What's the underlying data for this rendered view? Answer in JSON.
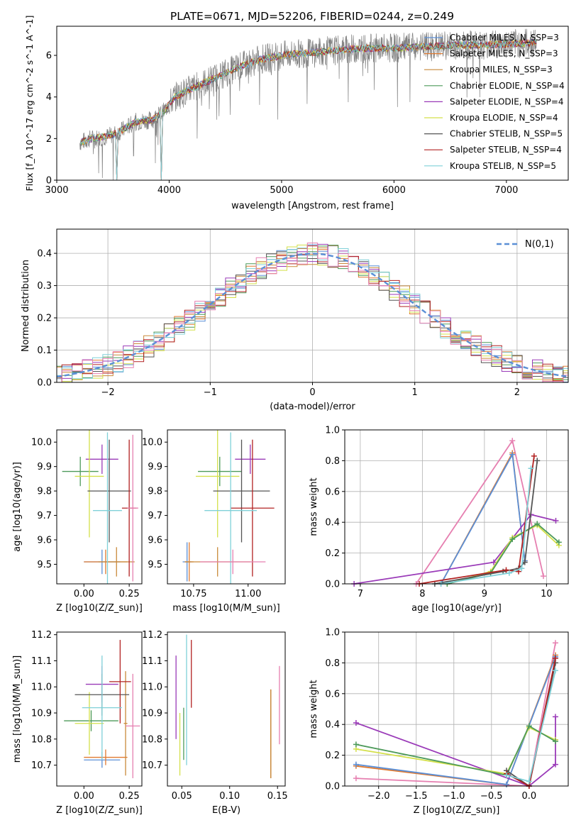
{
  "title": "PLATE=0671, MJD=52206, FIBERID=0244, z=0.249",
  "colors": {
    "Chabrier MILES": "#5b8fd6",
    "Salpeter MILES": "#e07a30",
    "Kroupa MILES": "#c98a3a",
    "Chabrier ELODIE": "#4d9a5a",
    "Salpeter ELODIE": "#9a3ab8",
    "Kroupa ELODIE": "#d4e04a",
    "Chabrier STELIB": "#555555",
    "Salpeter STELIB": "#b22222",
    "Kroupa STELIB": "#7fd0d8",
    "pink": "#e67fb0",
    "normal": "#5b8fd6",
    "grid": "#b0b0b0"
  },
  "chart_data": [
    {
      "type": "line",
      "name": "spectrum",
      "xlabel": "wavelength [Angstrom, rest frame]",
      "ylabel": "Flux [f_λ 10^-17 erg cm^-2 s^-1 A^-1]",
      "xlim": [
        3000,
        7550
      ],
      "ylim": [
        0,
        7.4
      ],
      "xticks": [
        3000,
        4000,
        5000,
        6000,
        7000
      ],
      "yticks": [
        0,
        2,
        4,
        6
      ],
      "continuum": [
        [
          3205,
          1.8
        ],
        [
          3300,
          2.0
        ],
        [
          3450,
          2.1
        ],
        [
          3550,
          2.3
        ],
        [
          3700,
          2.8
        ],
        [
          3850,
          2.9
        ],
        [
          3950,
          3.3
        ],
        [
          4050,
          4.0
        ],
        [
          4200,
          4.4
        ],
        [
          4400,
          4.9
        ],
        [
          4600,
          5.4
        ],
        [
          4800,
          5.8
        ],
        [
          5000,
          6.0
        ],
        [
          5200,
          6.1
        ],
        [
          5400,
          6.2
        ],
        [
          5600,
          6.3
        ],
        [
          5800,
          6.35
        ],
        [
          6000,
          6.35
        ],
        [
          6200,
          6.4
        ],
        [
          6400,
          6.45
        ],
        [
          6600,
          6.5
        ],
        [
          6800,
          6.5
        ],
        [
          7000,
          6.55
        ],
        [
          7200,
          6.6
        ]
      ],
      "legend_position": "upper right",
      "legend": [
        "Chabrier MILES, N_SSP=3",
        "Salpeter MILES, N_SSP=3",
        "Kroupa MILES, N_SSP=3",
        "Chabrier ELODIE, N_SSP=4",
        "Salpeter ELODIE, N_SSP=4",
        "Kroupa ELODIE, N_SSP=4",
        "Chabrier STELIB, N_SSP=5",
        "Salpeter STELIB, N_SSP=4",
        "Kroupa STELIB, N_SSP=5"
      ]
    },
    {
      "type": "area",
      "name": "residual histogram",
      "xlabel": "(data-model)/error",
      "ylabel": "Normed distribution",
      "xlim": [
        -2.5,
        2.5
      ],
      "ylim": [
        0,
        0.475
      ],
      "xticks": [
        -2,
        -1,
        0,
        1,
        2
      ],
      "yticks": [
        0.0,
        0.1,
        0.2,
        0.3,
        0.4
      ],
      "legend": "N(0,1)",
      "legend_position": "upper right",
      "grid": true
    },
    {
      "type": "scatter",
      "name": "age vs metallicity",
      "xlabel": "Z [log10(Z/Z_sun)]",
      "ylabel": "age [log10(age/yr)]",
      "xlim": [
        -0.15,
        0.32
      ],
      "ylim": [
        9.42,
        10.05
      ],
      "xticks": [
        0.0,
        0.25
      ],
      "yticks": [
        9.5,
        9.6,
        9.7,
        9.8,
        9.9,
        10.0
      ],
      "points": [
        {
          "c": "Chabrier MILES",
          "x": 0.1,
          "y": 9.51,
          "xe": 0.1,
          "ye": 0.05
        },
        {
          "c": "Salpeter MILES",
          "x": 0.12,
          "y": 9.51,
          "xe": 0.12,
          "ye": 0.05
        },
        {
          "c": "Kroupa MILES",
          "x": 0.18,
          "y": 9.51,
          "xe": 0.1,
          "ye": 0.06
        },
        {
          "c": "Chabrier ELODIE",
          "x": -0.02,
          "y": 9.88,
          "xe": 0.1,
          "ye": 0.06
        },
        {
          "c": "Salpeter ELODIE",
          "x": 0.1,
          "y": 9.93,
          "xe": 0.09,
          "ye": 0.06
        },
        {
          "c": "Kroupa ELODIE",
          "x": 0.03,
          "y": 9.86,
          "xe": 0.08,
          "ye": 0.25
        },
        {
          "c": "Chabrier STELIB",
          "x": 0.14,
          "y": 9.8,
          "xe": 0.12,
          "ye": 0.21
        },
        {
          "c": "Salpeter STELIB",
          "x": 0.25,
          "y": 9.73,
          "xe": 0.04,
          "ye": 0.28
        },
        {
          "c": "Kroupa STELIB",
          "x": 0.13,
          "y": 9.72,
          "xe": 0.08,
          "ye": 0.32
        },
        {
          "c": "pink",
          "x": 0.27,
          "y": 9.73,
          "xe": 0.03,
          "ye": 0.3
        }
      ]
    },
    {
      "type": "scatter",
      "name": "age vs mass",
      "xlabel": "mass [log10(M/M_sun)]",
      "ylabel": "",
      "xlim": [
        10.63,
        11.17
      ],
      "ylim": [
        9.42,
        10.05
      ],
      "xticks": [
        10.75,
        11.0
      ],
      "yticks": [
        9.5,
        9.6,
        9.7,
        9.8,
        9.9,
        10.0
      ],
      "points": [
        {
          "c": "Chabrier MILES",
          "x": 10.72,
          "y": 9.51,
          "xe": 0.02,
          "ye": 0.08
        },
        {
          "c": "Salpeter MILES",
          "x": 10.73,
          "y": 9.51,
          "xe": 0.02,
          "ye": 0.08
        },
        {
          "c": "Kroupa MILES",
          "x": 10.86,
          "y": 9.51,
          "xe": 0.15,
          "ye": 0.06
        },
        {
          "c": "Chabrier ELODIE",
          "x": 10.87,
          "y": 9.88,
          "xe": 0.1,
          "ye": 0.06
        },
        {
          "c": "Salpeter ELODIE",
          "x": 11.01,
          "y": 9.93,
          "xe": 0.07,
          "ye": 0.06
        },
        {
          "c": "Kroupa ELODIE",
          "x": 10.86,
          "y": 9.86,
          "xe": 0.1,
          "ye": 0.25
        },
        {
          "c": "Chabrier STELIB",
          "x": 10.97,
          "y": 9.8,
          "xe": 0.13,
          "ye": 0.21
        },
        {
          "c": "Salpeter STELIB",
          "x": 11.02,
          "y": 9.73,
          "xe": 0.1,
          "ye": 0.28
        },
        {
          "c": "Kroupa STELIB",
          "x": 10.92,
          "y": 9.72,
          "xe": 0.12,
          "ye": 0.32
        },
        {
          "c": "pink",
          "x": 10.93,
          "y": 9.51,
          "xe": 0.15,
          "ye": 0.05
        }
      ]
    },
    {
      "type": "line",
      "name": "mass weight vs age",
      "xlabel": "age [log10(age/yr)]",
      "ylabel": "mass weight",
      "xlim": [
        6.75,
        10.35
      ],
      "ylim": [
        0,
        1.0
      ],
      "xticks": [
        7,
        8,
        9,
        10
      ],
      "yticks": [
        0.0,
        0.2,
        0.4,
        0.6,
        0.8,
        1.0
      ],
      "grid": true,
      "series": [
        {
          "c": "pink",
          "x": [
            7.9,
            9.45,
            9.95
          ],
          "y": [
            0.0,
            0.93,
            0.05
          ]
        },
        {
          "c": "Salpeter MILES",
          "x": [
            8.3,
            9.45,
            9.65
          ],
          "y": [
            0.0,
            0.85,
            0.15
          ]
        },
        {
          "c": "Chabrier MILES",
          "x": [
            8.3,
            9.45,
            9.65
          ],
          "y": [
            0.0,
            0.84,
            0.15
          ]
        },
        {
          "c": "Salpeter ELODIE",
          "x": [
            6.9,
            9.15,
            9.75,
            10.15
          ],
          "y": [
            0.0,
            0.14,
            0.45,
            0.41
          ]
        },
        {
          "c": "Kroupa ELODIE",
          "x": [
            8.4,
            9.1,
            9.45,
            9.85,
            10.2
          ],
          "y": [
            0.0,
            0.08,
            0.3,
            0.38,
            0.25
          ]
        },
        {
          "c": "Chabrier ELODIE",
          "x": [
            8.4,
            9.1,
            9.45,
            9.85,
            10.2
          ],
          "y": [
            0.0,
            0.07,
            0.29,
            0.39,
            0.27
          ]
        },
        {
          "c": "Chabrier STELIB",
          "x": [
            8.2,
            9.3,
            9.55,
            9.65,
            9.85
          ],
          "y": [
            0.0,
            0.08,
            0.1,
            0.14,
            0.8
          ]
        },
        {
          "c": "Salpeter STELIB",
          "x": [
            7.95,
            9.35,
            9.55,
            9.8
          ],
          "y": [
            0.0,
            0.09,
            0.08,
            0.83
          ]
        },
        {
          "c": "Kroupa STELIB",
          "x": [
            8.3,
            9.4,
            9.6,
            9.75
          ],
          "y": [
            0.0,
            0.07,
            0.1,
            0.75
          ]
        }
      ]
    },
    {
      "type": "scatter",
      "name": "mass vs metallicity",
      "xlabel": "Z [log10(Z/Z_sun)]",
      "ylabel": "mass [log10(M/M_sun)]",
      "xlim": [
        -0.15,
        0.32
      ],
      "ylim": [
        10.62,
        11.21
      ],
      "xticks": [
        0.0,
        0.25
      ],
      "yticks": [
        10.7,
        10.8,
        10.9,
        11.0,
        11.1,
        11.2
      ],
      "points": [
        {
          "c": "Chabrier MILES",
          "x": 0.1,
          "y": 10.72,
          "xe": 0.1,
          "ye": 0.03
        },
        {
          "c": "Salpeter MILES",
          "x": 0.12,
          "y": 10.73,
          "xe": 0.12,
          "ye": 0.03
        },
        {
          "c": "Kroupa MILES",
          "x": 0.23,
          "y": 10.86,
          "xe": 0.01,
          "ye": 0.2
        },
        {
          "c": "Chabrier ELODIE",
          "x": 0.04,
          "y": 10.87,
          "xe": 0.15,
          "ye": 0.04
        },
        {
          "c": "Salpeter ELODIE",
          "x": 0.1,
          "y": 11.01,
          "xe": 0.09,
          "ye": 0.07
        },
        {
          "c": "Kroupa ELODIE",
          "x": 0.03,
          "y": 10.86,
          "xe": 0.08,
          "ye": 0.12
        },
        {
          "c": "Chabrier STELIB",
          "x": 0.1,
          "y": 10.97,
          "xe": 0.15,
          "ye": 0.08
        },
        {
          "c": "Salpeter STELIB",
          "x": 0.2,
          "y": 11.02,
          "xe": 0.06,
          "ye": 0.16
        },
        {
          "c": "Kroupa STELIB",
          "x": 0.1,
          "y": 10.92,
          "xe": 0.11,
          "ye": 0.2
        },
        {
          "c": "pink",
          "x": 0.27,
          "y": 10.85,
          "xe": 0.04,
          "ye": 0.2
        }
      ]
    },
    {
      "type": "scatter",
      "name": "mass vs E(B-V)",
      "xlabel": "E(B-V)",
      "ylabel": "",
      "xlim": [
        0.035,
        0.158
      ],
      "ylim": [
        10.62,
        11.21
      ],
      "xticks": [
        0.05,
        0.1,
        0.15
      ],
      "yticks": [
        10.7,
        10.8,
        10.9,
        11.0,
        11.1,
        11.2
      ],
      "points": [
        {
          "c": "Chabrier MILES",
          "x": 0.143,
          "y": 10.82,
          "xe": 0,
          "ye": 0.17
        },
        {
          "c": "Salpeter MILES",
          "x": 0.143,
          "y": 10.82,
          "xe": 0,
          "ye": 0.17
        },
        {
          "c": "Kroupa MILES",
          "x": 0.143,
          "y": 10.82,
          "xe": 0,
          "ye": 0.17
        },
        {
          "c": "Salpeter ELODIE",
          "x": 0.044,
          "y": 10.96,
          "xe": 0,
          "ye": 0.16
        },
        {
          "c": "Kroupa ELODIE",
          "x": 0.048,
          "y": 10.78,
          "xe": 0,
          "ye": 0.12
        },
        {
          "c": "Chabrier ELODIE",
          "x": 0.052,
          "y": 10.82,
          "xe": 0,
          "ye": 0.1
        },
        {
          "c": "Salpeter STELIB",
          "x": 0.06,
          "y": 11.05,
          "xe": 0,
          "ye": 0.13
        },
        {
          "c": "Kroupa STELIB",
          "x": 0.055,
          "y": 10.95,
          "xe": 0,
          "ye": 0.25
        },
        {
          "c": "pink",
          "x": 0.152,
          "y": 10.93,
          "xe": 0,
          "ye": 0.15
        }
      ]
    },
    {
      "type": "line",
      "name": "mass weight vs metallicity",
      "xlabel": "Z [log10(Z/Z_sun)]",
      "ylabel": "mass weight",
      "xlim": [
        -2.45,
        0.52
      ],
      "ylim": [
        0,
        1.0
      ],
      "xticks": [
        -2.0,
        -1.5,
        -1.0,
        -0.5,
        0.0
      ],
      "yticks": [
        0.0,
        0.2,
        0.4,
        0.6,
        0.8,
        1.0
      ],
      "grid": true,
      "series": [
        {
          "c": "pink",
          "x": [
            -2.3,
            0.0,
            0.35
          ],
          "y": [
            0.05,
            0.0,
            0.93
          ]
        },
        {
          "c": "Salpeter MILES",
          "x": [
            -2.3,
            -0.3,
            0.35
          ],
          "y": [
            0.13,
            0.01,
            0.85
          ]
        },
        {
          "c": "Chabrier MILES",
          "x": [
            -2.3,
            -0.3,
            0.35
          ],
          "y": [
            0.14,
            0.01,
            0.84
          ]
        },
        {
          "c": "Salpeter ELODIE",
          "x": [
            -2.3,
            0.0,
            0.35,
            0.35,
            0.35
          ],
          "y": [
            0.41,
            0.0,
            0.14,
            0.45,
            0.3
          ]
        },
        {
          "c": "Kroupa ELODIE",
          "x": [
            -2.3,
            -0.3,
            0.0,
            0.35
          ],
          "y": [
            0.24,
            0.08,
            0.38,
            0.3
          ]
        },
        {
          "c": "Chabrier ELODIE",
          "x": [
            -2.3,
            -0.3,
            0.0,
            0.35
          ],
          "y": [
            0.27,
            0.07,
            0.39,
            0.29
          ]
        },
        {
          "c": "Chabrier STELIB",
          "x": [
            -0.3,
            0.0,
            0.35
          ],
          "y": [
            0.1,
            0.0,
            0.8
          ]
        },
        {
          "c": "Salpeter STELIB",
          "x": [
            -0.3,
            0.0,
            0.35
          ],
          "y": [
            0.08,
            0.0,
            0.83
          ]
        },
        {
          "c": "Kroupa STELIB",
          "x": [
            -0.3,
            0.0,
            0.35
          ],
          "y": [
            0.07,
            0.03,
            0.75
          ]
        }
      ]
    }
  ]
}
